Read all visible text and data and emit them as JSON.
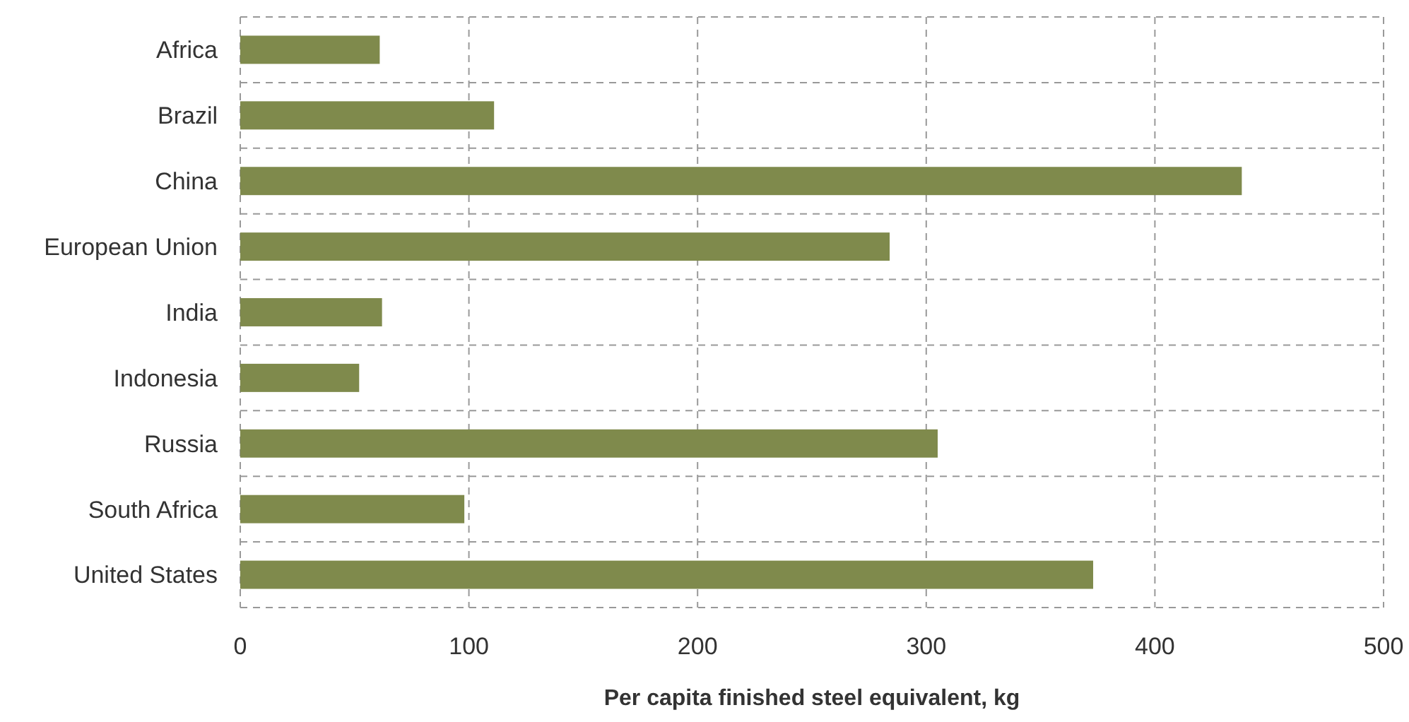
{
  "chart_data": {
    "type": "bar",
    "orientation": "horizontal",
    "xlabel": "Per capita finished steel equivalent, kg",
    "categories": [
      "Africa",
      "Brazil",
      "China",
      "European Union",
      "India",
      "Indonesia",
      "Russia",
      "South Africa",
      "United States"
    ],
    "values": [
      61,
      111,
      438,
      284,
      62,
      52,
      305,
      98,
      373
    ],
    "color": "#7f8a4c",
    "xlim": [
      0,
      500
    ],
    "xticks": [
      0,
      100,
      200,
      300,
      400,
      500
    ],
    "grid": true
  }
}
